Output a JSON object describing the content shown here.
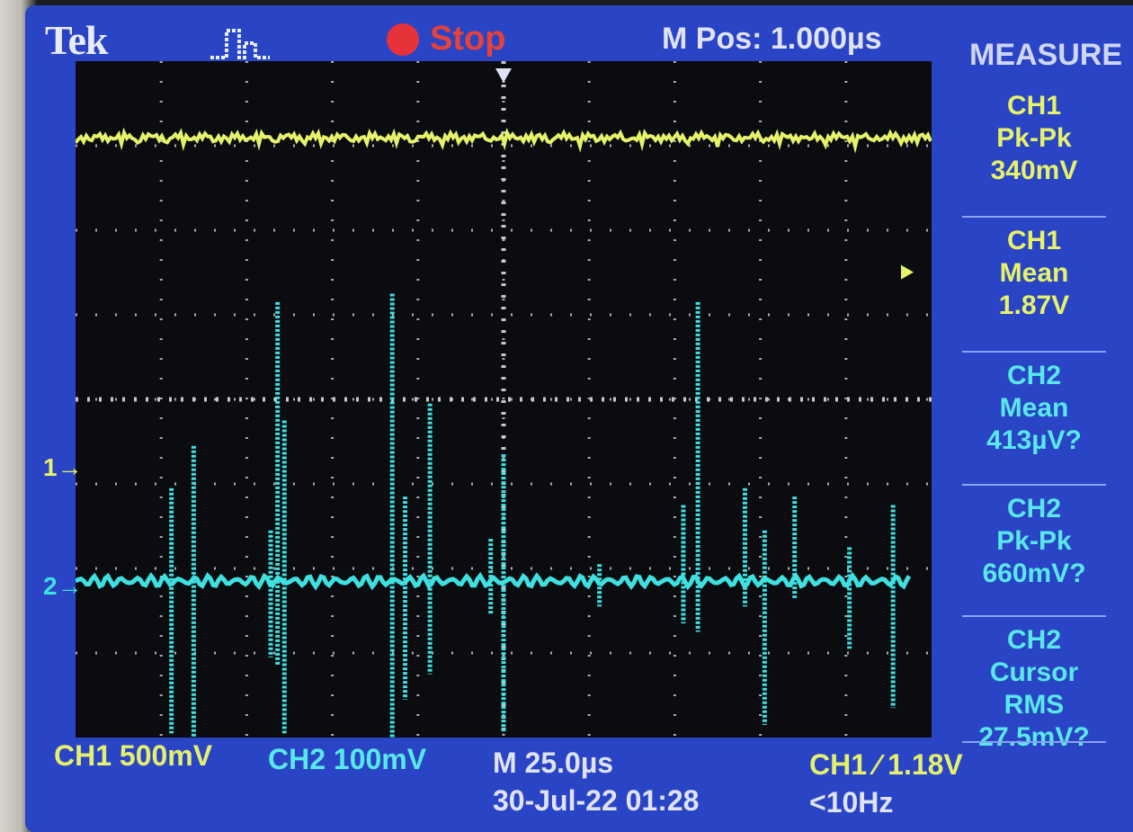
{
  "header": {
    "brand": "Tek",
    "run_state": "Stop",
    "m_pos": "M Pos: 1.000µs",
    "menu_title": "MEASURE"
  },
  "measurements": [
    {
      "channel": "CH1",
      "label": "Pk-Pk",
      "value": "340mV"
    },
    {
      "channel": "CH1",
      "label": "Mean",
      "value": "1.87V"
    },
    {
      "channel": "CH2",
      "label": "Mean",
      "value": "413µV?"
    },
    {
      "channel": "CH2",
      "label": "Pk-Pk",
      "value": "660mV?"
    },
    {
      "channel": "CH2",
      "label": "Cursor RMS",
      "value": "27.5mV?"
    }
  ],
  "footer": {
    "ch1_scale": "CH1  500mV",
    "ch2_scale": "CH2  100mV",
    "timebase": "M 25.0µs",
    "date": "30-Jul-22 01:28",
    "trigger": "CH1 ∕ 1.18V",
    "freq": "<10Hz"
  },
  "markers": {
    "ch1": "1→",
    "ch2": "2→"
  },
  "colors": {
    "ch1": "#e6f26a",
    "ch2": "#3fe0e0",
    "screen": "#2a44c6",
    "grid": "#c8c8c8"
  },
  "icons": {
    "trigger": "pulse-trigger-icon",
    "stop": "record-stop-icon"
  },
  "traces": {
    "ch1_level_div": 7.1,
    "ch2_level_div": 1.85,
    "ch2_spikes": [
      {
        "t": 1.12,
        "up": 1.1,
        "down": 1.8
      },
      {
        "t": 1.38,
        "up": 1.6,
        "down": 1.9
      },
      {
        "t": 2.28,
        "up": 0.6,
        "down": 0.9
      },
      {
        "t": 2.36,
        "up": 3.3,
        "down": 1.0
      },
      {
        "t": 2.44,
        "up": 1.9,
        "down": 1.8
      },
      {
        "t": 3.7,
        "up": 3.4,
        "down": 1.9
      },
      {
        "t": 3.85,
        "up": 1.0,
        "down": 1.4
      },
      {
        "t": 4.14,
        "up": 2.1,
        "down": 1.1
      },
      {
        "t": 4.85,
        "up": 0.5,
        "down": 0.4
      },
      {
        "t": 5.0,
        "up": 1.5,
        "down": 1.8
      },
      {
        "t": 6.12,
        "up": 0.2,
        "down": 0.3
      },
      {
        "t": 7.1,
        "up": 0.9,
        "down": 0.5
      },
      {
        "t": 7.27,
        "up": 3.3,
        "down": 0.6
      },
      {
        "t": 7.82,
        "up": 1.1,
        "down": 0.3
      },
      {
        "t": 8.05,
        "up": 0.6,
        "down": 1.7
      },
      {
        "t": 8.4,
        "up": 1.0,
        "down": 0.2
      },
      {
        "t": 9.04,
        "up": 0.4,
        "down": 0.8
      },
      {
        "t": 9.55,
        "up": 0.9,
        "down": 1.5
      }
    ]
  }
}
